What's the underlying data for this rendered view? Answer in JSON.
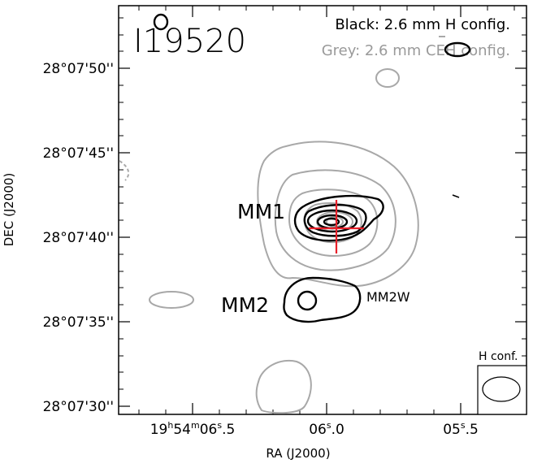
{
  "figure": {
    "source_name": "I19520",
    "legend": {
      "black": "Black: 2.6 mm H config.",
      "grey": "Grey: 2.6 mm CEH config."
    },
    "colors": {
      "black_contours": "#000000",
      "grey_contours": "#a8a8a8",
      "cross": "#e8202a"
    },
    "x_axis": {
      "label": "RA (J2000)",
      "ticks": [
        {
          "h": "19",
          "m": "54",
          "s": "06",
          "frac": "5",
          "pre": ""
        },
        {
          "h": "",
          "m": "",
          "s": "06",
          "frac": "0",
          "pre": ""
        },
        {
          "h": "",
          "m": "",
          "s": "05",
          "frac": "5",
          "pre": ""
        }
      ]
    },
    "y_axis": {
      "label": "DEC (J2000)",
      "ticks": [
        "28°07'50''",
        "28°07'45''",
        "28°07'40''",
        "28°07'35''",
        "28°07'30''"
      ]
    },
    "sources": {
      "mm1": "MM1",
      "mm2": "MM2",
      "mm2w": "MM2W"
    },
    "beam": {
      "label": "H conf."
    }
  }
}
